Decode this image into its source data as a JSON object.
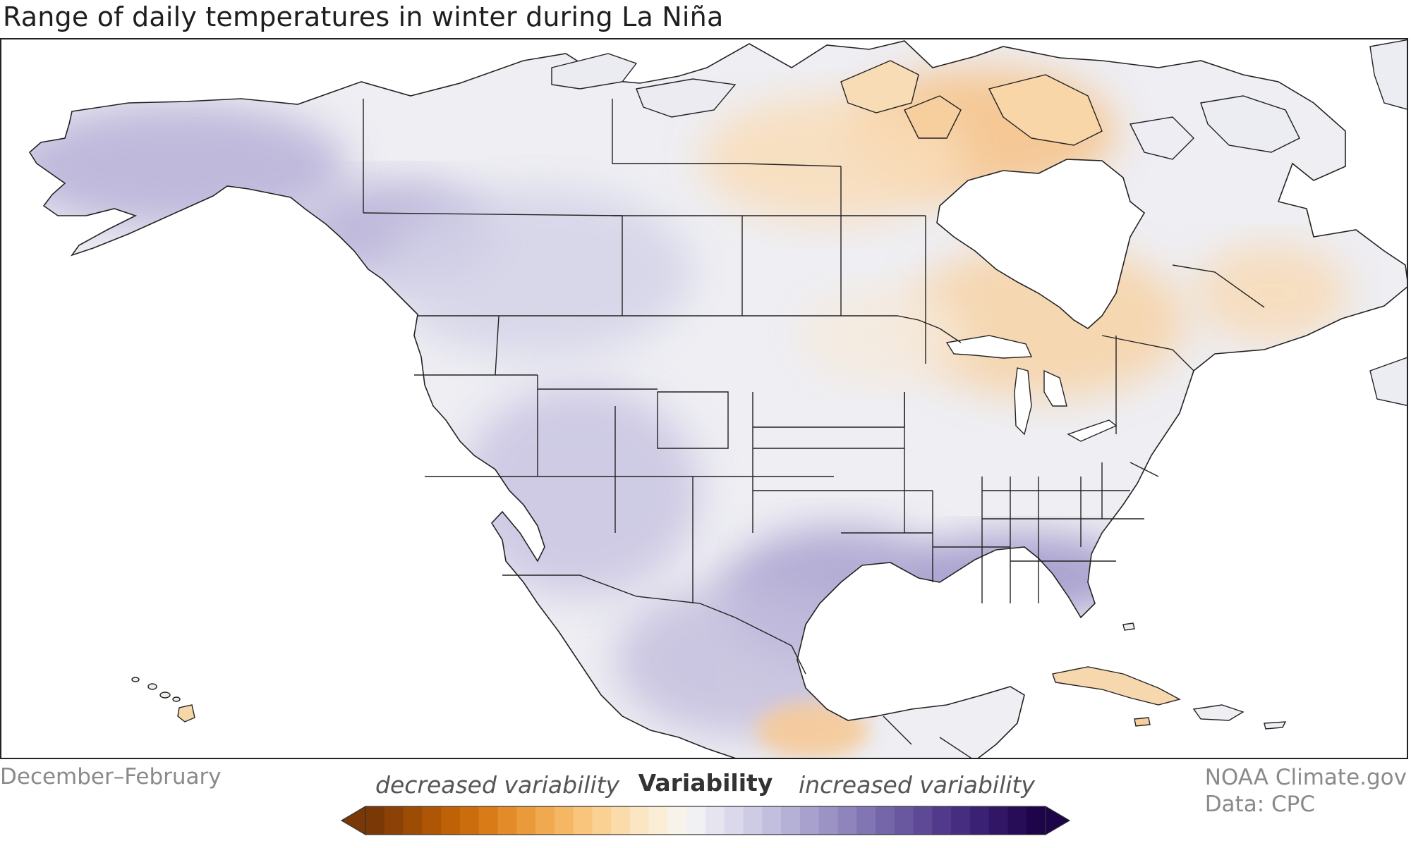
{
  "title": "Range of daily temperatures in winter during La Niña",
  "season": "December–February",
  "credit": {
    "line1": "NOAA Climate.gov",
    "line2": "Data: CPC"
  },
  "legend": {
    "title": "Variability",
    "left_label": "decreased variability",
    "right_label": "increased variability",
    "colors": [
      "#7a3806",
      "#8c4206",
      "#9d4c06",
      "#ae5606",
      "#bf6107",
      "#cc6d0d",
      "#d97c18",
      "#e38b29",
      "#eb9a3b",
      "#f1a94f",
      "#f6b765",
      "#f9c47c",
      "#fbd093",
      "#fcdbab",
      "#fce5c2",
      "#fbeed7",
      "#f7f3ea",
      "#f1f1f4",
      "#e6e5ef",
      "#dad8ea",
      "#cecbe4",
      "#c2bedd",
      "#b5b0d6",
      "#a9a1cd",
      "#9c93c5",
      "#8f84bc",
      "#8275b3",
      "#7566a9",
      "#69579f",
      "#5d4996",
      "#513a8b",
      "#462d80",
      "#3b2174",
      "#311666",
      "#270c58",
      "#1e0448"
    ]
  },
  "map": {
    "region": "North America",
    "land_neutral": "#eeeef3",
    "water": "#ffffff",
    "orange_region_color": "#f8dcb8",
    "purple_region_color": "#c0bbdc",
    "border_color": "#222222"
  }
}
